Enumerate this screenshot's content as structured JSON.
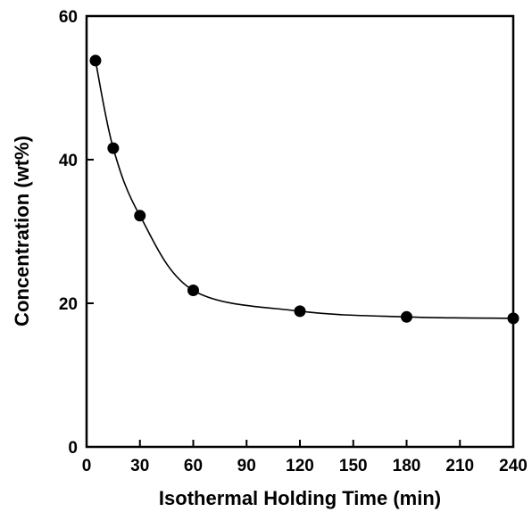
{
  "chart_data": {
    "type": "scatter",
    "title": "",
    "xlabel": "Isothermal Holding Time (min)",
    "ylabel": "Concentration (wt%)",
    "xlim": [
      0,
      240
    ],
    "ylim": [
      0,
      60
    ],
    "x_ticks": [
      0,
      30,
      60,
      90,
      120,
      150,
      180,
      210,
      240
    ],
    "y_ticks": [
      0,
      20,
      40,
      60
    ],
    "grid": false,
    "legend": "none",
    "marker_color": "#000000",
    "series": [
      {
        "marker": "filled-circle",
        "fit_curve": true,
        "points": [
          {
            "x": 5,
            "y": 53.8
          },
          {
            "x": 15,
            "y": 41.6
          },
          {
            "x": 30,
            "y": 32.2
          },
          {
            "x": 60,
            "y": 21.8
          },
          {
            "x": 120,
            "y": 18.9
          },
          {
            "x": 180,
            "y": 18.1
          },
          {
            "x": 240,
            "y": 17.9
          }
        ]
      }
    ]
  }
}
